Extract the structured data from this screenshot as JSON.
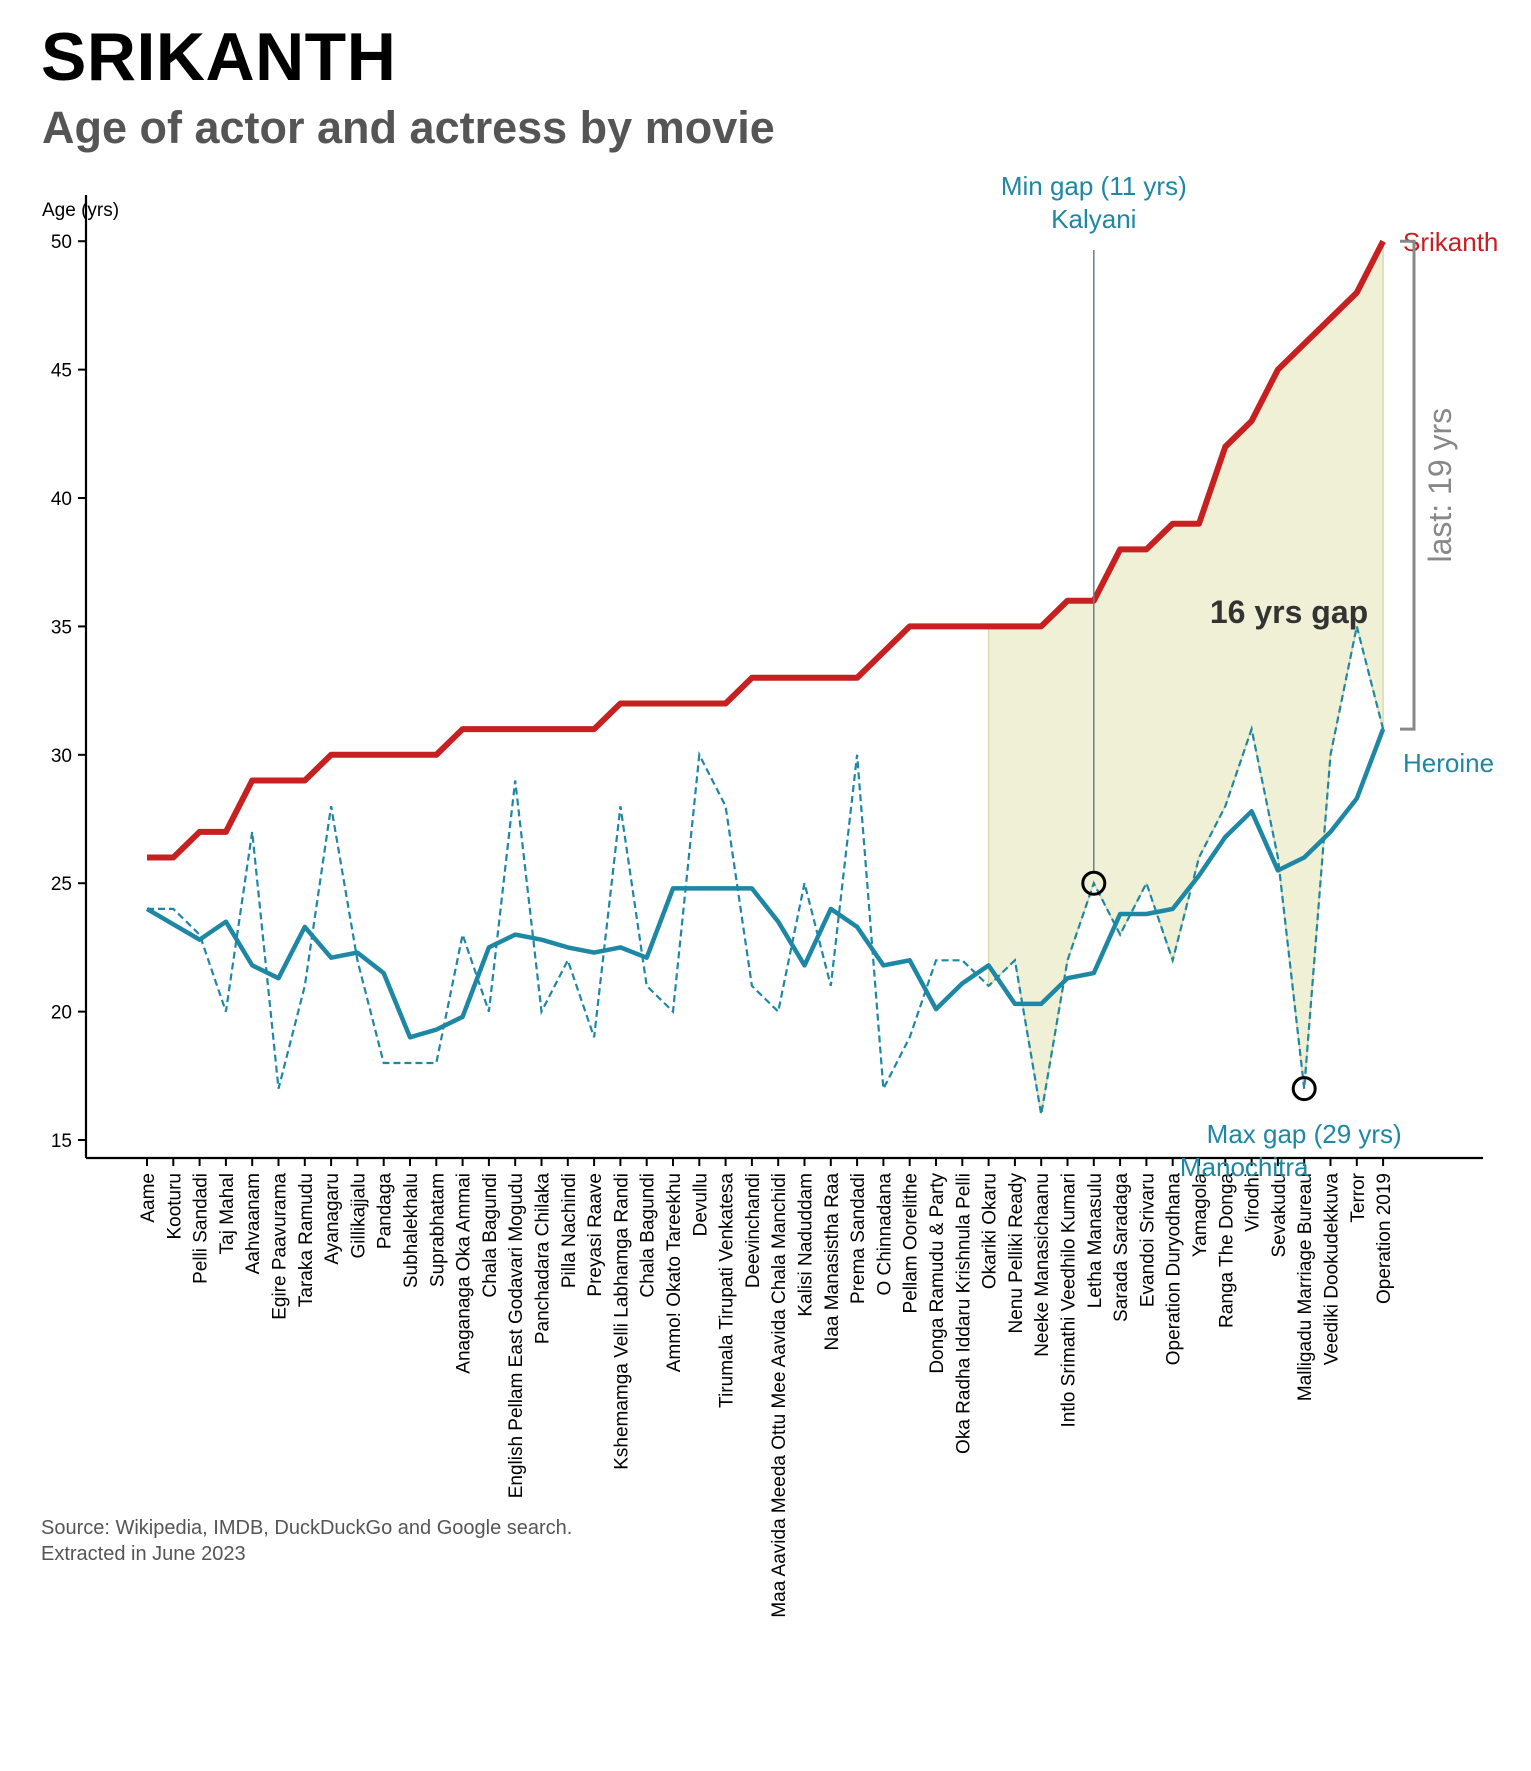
{
  "title": "SRIKANTH",
  "subtitle": "Age of actor and actress by movie",
  "source": {
    "line1": "Source: Wikipedia, IMDB, DuckDuckGo and Google search.",
    "line2": "Extracted in June 2023"
  },
  "chart_data": {
    "type": "line",
    "ylabel": "Age (yrs)",
    "xlabel": "",
    "ylim": [
      14.3,
      51.8
    ],
    "yticks": [
      15,
      20,
      25,
      30,
      35,
      40,
      45,
      50
    ],
    "grid": false,
    "categories": [
      "Aame",
      "Kooturu",
      "Pelli Sandadi",
      "Taj Mahal",
      "Aahvaanam",
      "Egire Paavurama",
      "Taraka Ramudu",
      "Ayanagaru",
      "Gillikajjalu",
      "Pandaga",
      "Subhalekhalu",
      "Suprabhatam",
      "Anaganaga Oka Ammai",
      "Chala Bagundi",
      "English Pellam East Godavari Mogudu",
      "Panchadara Chilaka",
      "Pilla Nachindi",
      "Preyasi Raave",
      "Kshemamga Velli Labhamga Randi",
      "Chala Bagundi",
      "Ammo! Okato Tareekhu",
      "Devullu",
      "Tirumala Tirupati Venkatesa",
      "Deevinchandi",
      "Maa Aavida Meeda Ottu Mee Aavida Chala Manchidi",
      "Kalisi Naduddam",
      "Naa Manasistha Raa",
      "Prema Sandadi",
      "O Chinnadana",
      "Pellam Oorelithe",
      "Donga Ramudu & Party",
      "Oka Radha Iddaru Krishnula Pelli",
      "Okariki Okaru",
      "Nenu Pelliki Ready",
      "Neeke Manasichaanu",
      "Intlo Srimathi Veedhilo Kumari",
      "Letha Manasulu",
      "Sarada Saradaga",
      "Evandoi Srivaru",
      "Operation Duryodhana",
      "Yamagola",
      "Ranga The Donga",
      "Virodhi",
      "Sevakudu",
      "Malligadu Marriage Bureau",
      "Veediki Dookudekkuva",
      "Terror",
      "Operation 2019"
    ],
    "series": [
      {
        "name": "Srikanth",
        "style": "solid-thick",
        "color": "#c62020",
        "values": [
          26,
          26,
          27,
          27,
          29,
          29,
          29,
          30,
          30,
          30,
          30,
          30,
          31,
          31,
          31,
          31,
          31,
          31,
          32,
          32,
          32,
          32,
          32,
          33,
          33,
          33,
          33,
          33,
          34,
          35,
          35,
          35,
          35,
          35,
          35,
          36,
          36,
          38,
          38,
          39,
          39,
          42,
          43,
          45,
          46,
          47,
          48,
          50
        ]
      },
      {
        "name": "Heroine",
        "style": "solid-smoothed",
        "color": "#1d87a4",
        "values": [
          24,
          23.4,
          22.8,
          23.5,
          21.8,
          21.3,
          23.3,
          22.1,
          22.3,
          21.5,
          19,
          19.3,
          19.8,
          22.5,
          23,
          22.8,
          22.5,
          22.3,
          22.5,
          22.1,
          24.8,
          24.8,
          24.8,
          24.8,
          23.5,
          21.8,
          24,
          23.3,
          21.8,
          22,
          20.1,
          21.1,
          21.8,
          20.3,
          20.3,
          21.3,
          21.5,
          23.8,
          23.8,
          24,
          25.3,
          26.8,
          27.8,
          25.5,
          26,
          27,
          28.3,
          31
        ]
      },
      {
        "name": "",
        "style": "dashed",
        "color": "#1d87a4",
        "values": [
          24,
          24,
          23,
          20,
          27,
          17,
          21,
          28,
          22,
          18,
          18,
          18,
          23,
          20,
          29,
          20,
          22,
          19,
          28,
          21,
          20,
          30,
          28,
          21,
          20,
          25,
          21,
          30,
          17,
          19,
          22,
          22,
          21,
          22,
          16,
          22,
          25,
          23,
          25,
          22,
          26,
          28,
          31,
          26,
          17,
          30,
          35,
          31
        ]
      }
    ],
    "shaded_range": {
      "from_category": "Okariki Okaru",
      "to_category": "Operation 2019",
      "color": "#f0f0d6"
    },
    "annotations": {
      "min_gap": {
        "line1": "Min gap (11 yrs)",
        "line2": "Kalyani",
        "category": "Letha Manasulu",
        "value": 25,
        "color": "#1d87a4"
      },
      "max_gap": {
        "line1": "Max gap (29 yrs)",
        "line2": "Manochitra",
        "category": "Malligadu Marriage Bureau",
        "value": 17,
        "color": "#1d87a4"
      },
      "gap_text": "16 yrs gap",
      "last_text": "last: 19 yrs",
      "actor_label": "Srikanth",
      "heroine_label": "Heroine"
    }
  }
}
